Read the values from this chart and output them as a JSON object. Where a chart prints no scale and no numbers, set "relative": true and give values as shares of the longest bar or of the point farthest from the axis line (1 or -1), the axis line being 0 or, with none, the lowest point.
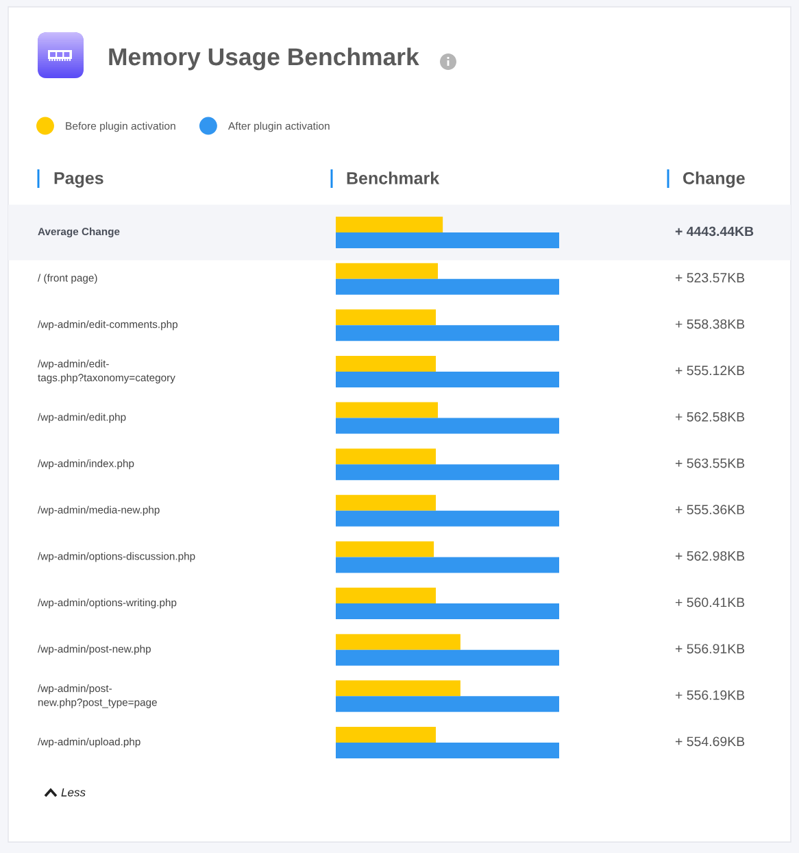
{
  "chart_data": {
    "type": "bar",
    "orientation": "horizontal",
    "relative": true,
    "title": "Memory Usage Benchmark",
    "ylabel": "Pages",
    "xlabel": "Benchmark",
    "annotations": [
      "Change",
      "+ 4443.44KB",
      "+ 523.57KB",
      "+ 558.38KB",
      "+ 555.12KB",
      "+ 562.58KB",
      "+ 563.55KB",
      "+ 555.36KB",
      "+ 562.98KB",
      "+ 560.41KB",
      "+ 556.91KB",
      "+ 556.19KB",
      "+ 554.69KB",
      "Less"
    ],
    "categories": [
      "Average Change",
      "/ (front page)",
      "/wp-admin/edit-comments.php",
      "/wp-admin/edit-\ntags.php?taxonomy=category",
      "/wp-admin/edit.php",
      "/wp-admin/index.php",
      "/wp-admin/media-new.php",
      "/wp-admin/options-discussion.php",
      "/wp-admin/options-writing.php",
      "/wp-admin/post-new.php",
      "/wp-admin/post-\nnew.php?post_type=page",
      "/wp-admin/upload.php"
    ],
    "series": [
      {
        "name": "Before plugin activation",
        "color": "#ffcc00",
        "values": [
          0.479,
          0.457,
          0.448,
          0.448,
          0.457,
          0.448,
          0.448,
          0.439,
          0.448,
          0.558,
          0.558,
          0.448
        ]
      },
      {
        "name": "After plugin activation",
        "color": "#3296f0",
        "values": [
          1,
          1,
          1,
          1,
          1,
          1,
          1,
          1,
          1,
          1,
          1,
          1
        ]
      }
    ],
    "bands": [
      {
        "axis": "y",
        "from": "Average Change",
        "to": "Average Change",
        "color": "#f4f5f9"
      }
    ],
    "legend": "top left",
    "tick_labels": "y"
  }
}
